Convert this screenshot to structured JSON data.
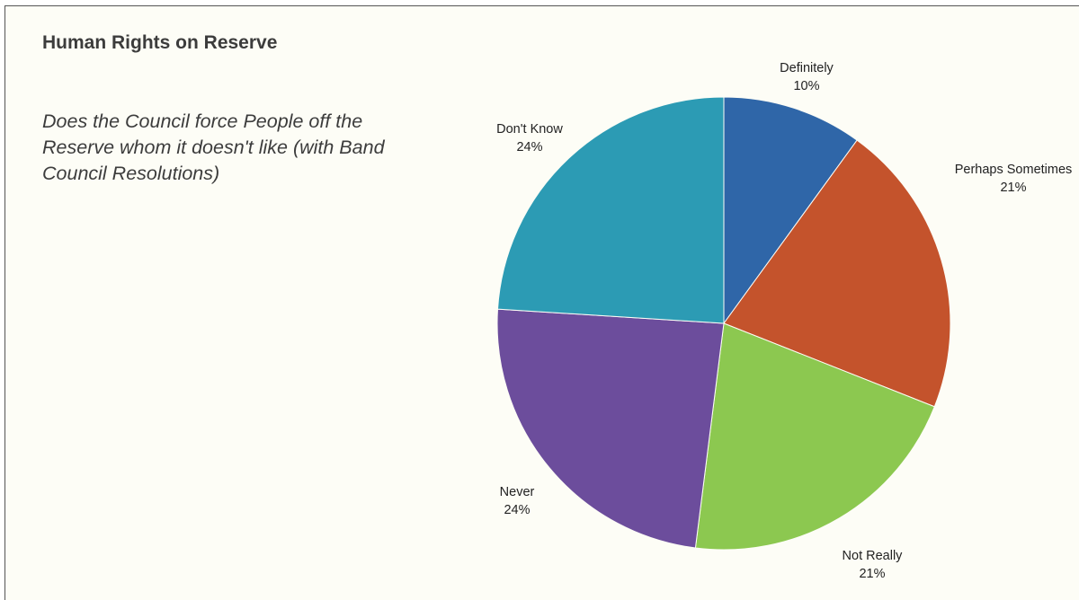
{
  "title": "Human Rights on Reserve",
  "question": "Does the Council force People off the Reserve whom it doesn't like (with Band Council Resolutions)",
  "chart_data": {
    "type": "pie",
    "title": "",
    "start_angle_deg": 0,
    "direction": "clockwise",
    "slices": [
      {
        "label": "Definitely",
        "value": 10,
        "display": "10%",
        "color": "#2f66a8"
      },
      {
        "label": "Perhaps Sometimes",
        "value": 21,
        "display": "21%",
        "color": "#c4532c"
      },
      {
        "label": "Not Really",
        "value": 21,
        "display": "21%",
        "color": "#8cc850"
      },
      {
        "label": "Never",
        "value": 24,
        "display": "24%",
        "color": "#6c4d9c"
      },
      {
        "label": "Don't Know",
        "value": 24,
        "display": "24%",
        "color": "#2c9bb4"
      }
    ]
  }
}
